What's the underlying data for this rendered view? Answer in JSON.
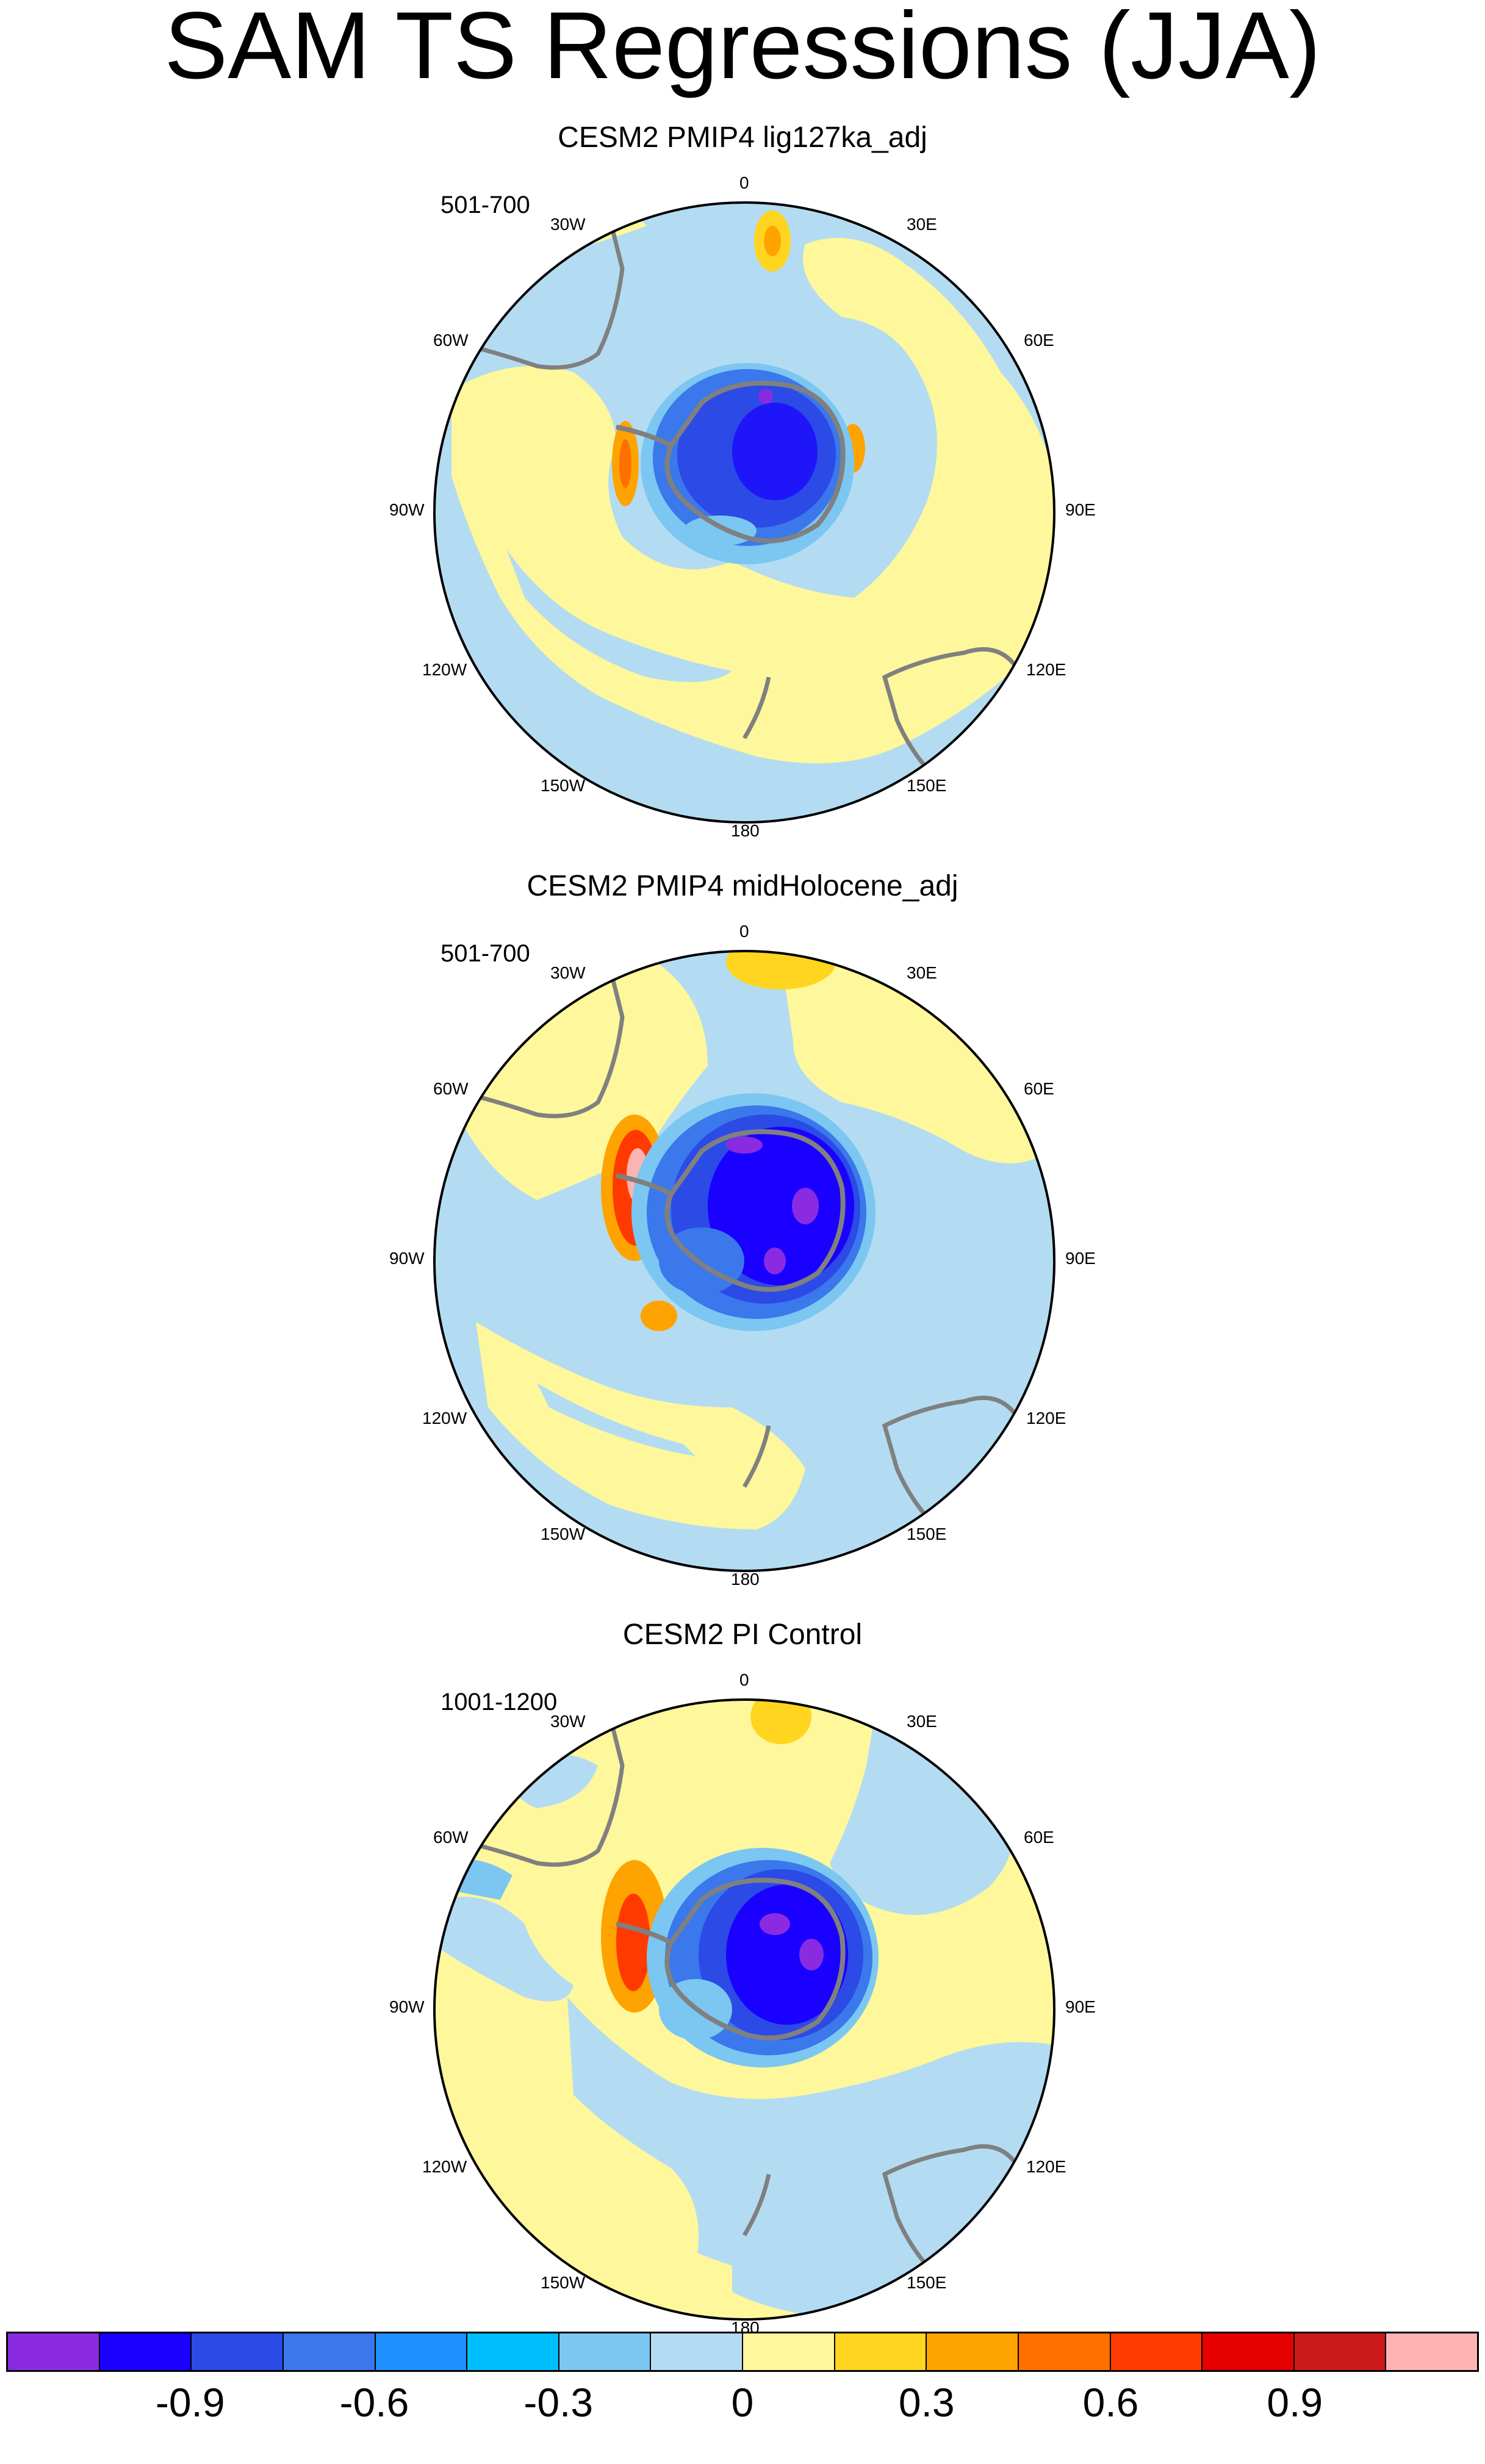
{
  "title": "SAM TS Regressions (JJA)",
  "panels": [
    {
      "title": "CESM2 PMIP4 lig127ka_adj",
      "period": "501-700"
    },
    {
      "title": "CESM2 PMIP4 midHolocene_adj",
      "period": "501-700"
    },
    {
      "title": "CESM2 PI Control",
      "period": "1001-1200"
    }
  ],
  "longitude_labels": {
    "top": "0",
    "bottom": "180",
    "left": [
      "30W",
      "60W",
      "90W",
      "120W",
      "150W"
    ],
    "right": [
      "30E",
      "60E",
      "90E",
      "120E",
      "150E"
    ]
  },
  "colorbar": {
    "colors": [
      "#8a2be2",
      "#1a00ff",
      "#2b4ae6",
      "#3a78ec",
      "#1e90ff",
      "#00bfff",
      "#7cc6f2",
      "#b3dcf2",
      "#fff79c",
      "#ffd51f",
      "#ffa300",
      "#ff7000",
      "#ff3a00",
      "#e60000",
      "#cc1a1a",
      "#ffb4b4"
    ],
    "labels": [
      "-0.9",
      "-0.6",
      "-0.3",
      "0",
      "0.3",
      "0.6",
      "0.9"
    ]
  },
  "map_colors": {
    "ocean_neg": "#b3dcf2",
    "pos": "#fff79c",
    "strong_pos": "#ffd51f",
    "orange": "#ffa300",
    "red": "#ff3a00",
    "deep_blue": "#1a00ff",
    "blue": "#2b4ae6",
    "mid_blue": "#3a78ec",
    "light_blue": "#7cc6f2",
    "purple": "#8a2be2",
    "coast": "#808080"
  }
}
